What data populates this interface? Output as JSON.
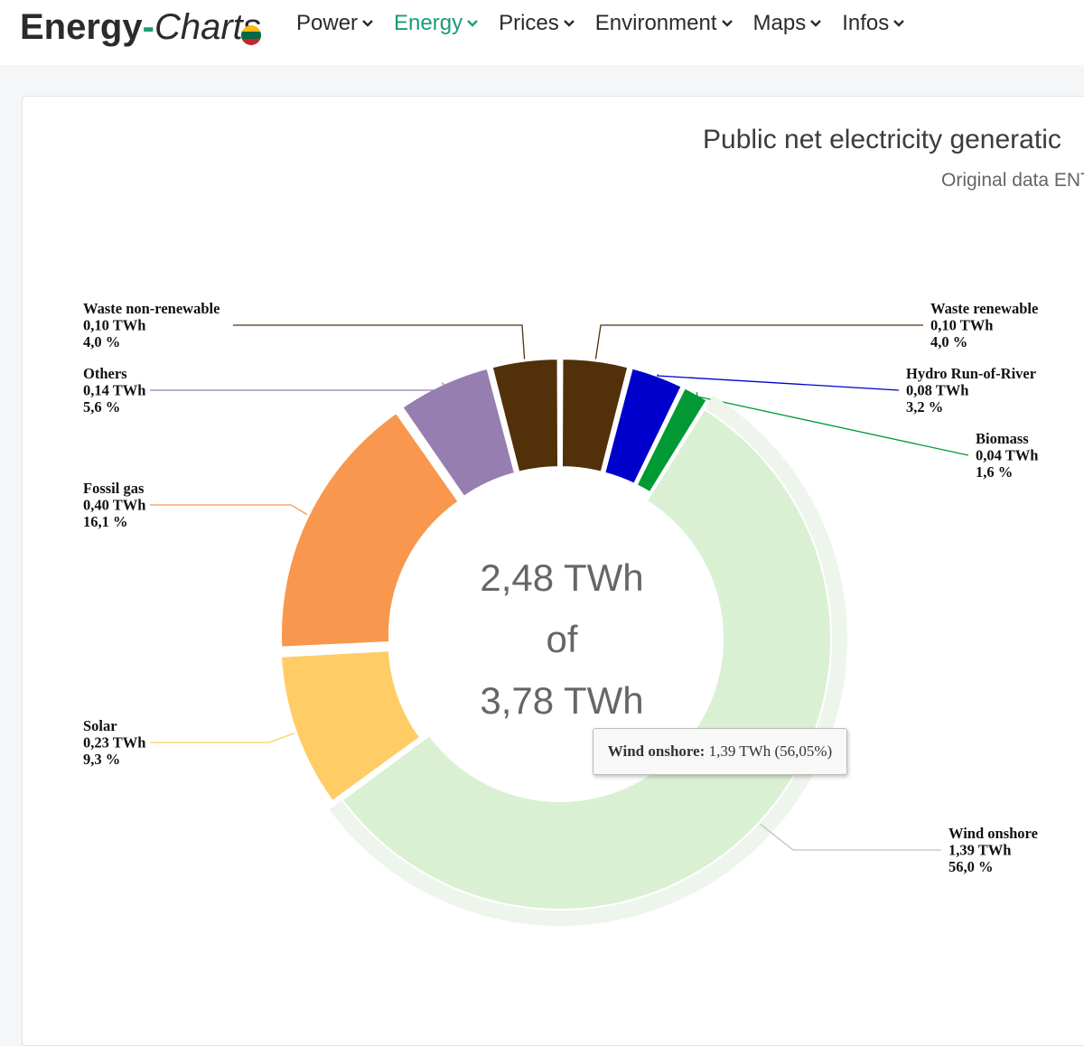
{
  "nav": {
    "logo_part1": "Energy",
    "logo_dash": "-",
    "logo_part2": "Charts",
    "flag_colors": [
      "#FDB913",
      "#006A44",
      "#C1272D"
    ],
    "items": [
      {
        "label": "Power",
        "active": false
      },
      {
        "label": "Energy",
        "active": true
      },
      {
        "label": "Prices",
        "active": false
      },
      {
        "label": "Environment",
        "active": false
      },
      {
        "label": "Maps",
        "active": false
      },
      {
        "label": "Infos",
        "active": false
      }
    ],
    "accent_color": "#1a9c77"
  },
  "tooltip": {
    "name": "Wind onshore:",
    "value": " 1,39 TWh (56,05%)"
  },
  "chart_data": {
    "type": "pie",
    "title": "Public net electricity generatic",
    "subtitle": "Original data ENT",
    "center_text": [
      "2,48 TWh",
      "of",
      "3,78 TWh"
    ],
    "series": [
      {
        "name": "Waste renewable",
        "value": 0.1,
        "value_label": "0,10 TWh",
        "percent_label": "4,0 %",
        "color": "#51300a"
      },
      {
        "name": "Hydro Run-of-River",
        "value": 0.08,
        "value_label": "0,08 TWh",
        "percent_label": "3,2 %",
        "color": "#0000cc"
      },
      {
        "name": "Biomass",
        "value": 0.04,
        "value_label": "0,04 TWh",
        "percent_label": "1,6 %",
        "color": "#009933"
      },
      {
        "name": "Wind onshore",
        "value": 1.39,
        "value_label": "1,39 TWh",
        "percent_label": "56,0 %",
        "color": "#daf0d3"
      },
      {
        "name": "Solar",
        "value": 0.23,
        "value_label": "0,23 TWh",
        "percent_label": "9,3 %",
        "color": "#ffcc66"
      },
      {
        "name": "Fossil gas",
        "value": 0.4,
        "value_label": "0,40 TWh",
        "percent_label": "16,1 %",
        "color": "#f8974d"
      },
      {
        "name": "Others",
        "value": 0.14,
        "value_label": "0,14 TWh",
        "percent_label": "5,6 %",
        "color": "#967eb0"
      },
      {
        "name": "Waste non-renewable",
        "value": 0.1,
        "value_label": "0,10 TWh",
        "percent_label": "4,0 %",
        "color": "#51300a"
      }
    ],
    "label_colors": {
      "Waste renewable": "#51300a",
      "Hydro Run-of-River": "#0000cc",
      "Biomass": "#009933",
      "Wind onshore": "#b7c9b2",
      "Solar": "#ffcc66",
      "Fossil gas": "#f8974d",
      "Others": "#967eb0",
      "Waste non-renewable": "#51300a"
    },
    "hovered": "Wind onshore"
  }
}
